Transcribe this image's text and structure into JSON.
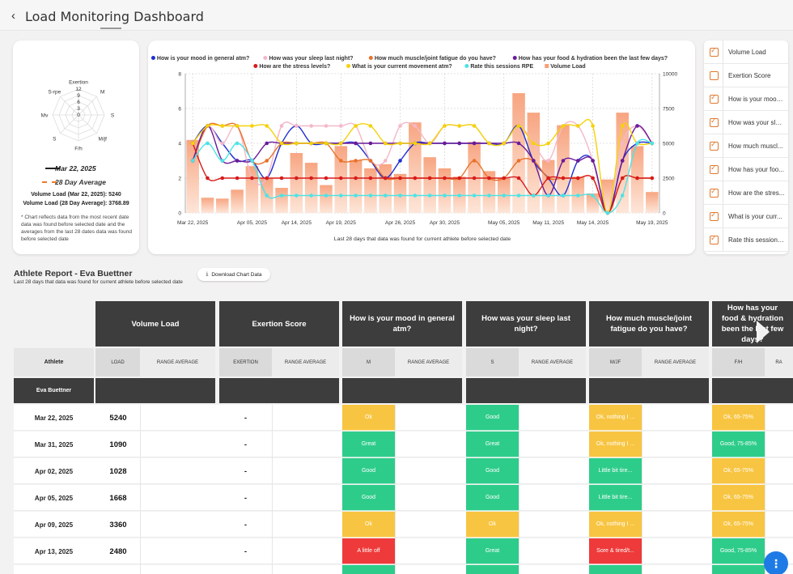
{
  "header": {
    "title": "Load Monitoring Dashboard",
    "back_glyph": "‹"
  },
  "radar": {
    "axes": [
      "Exertion",
      "M",
      "S",
      "M/jf",
      "F/h",
      "S",
      "Mv",
      "S-rpe"
    ],
    "rings": [
      "12",
      "9",
      "6",
      "3",
      "0"
    ],
    "date_legend": "Mar 22, 2025",
    "avg_legend": "28 Day Average",
    "volume_load": "Volume Load (Mar 22, 2025): 5240",
    "volume_load_avg": "Volume Load (28 Day Average): 3768.89",
    "note": "* Chart reflects data from the most recent date data was found before selected date and the averages from the last 28 dates data was found before selected date",
    "colors": {
      "date": "#222222",
      "avg": "#f07a28"
    }
  },
  "chart_data": {
    "type": "line",
    "title": "",
    "legend": [
      {
        "name": "How is your mood in general atm?",
        "color": "#1f2fd0"
      },
      {
        "name": "How was your sleep last night?",
        "color": "#f4b8c8"
      },
      {
        "name": "How much muscle/joint fatigue do you have?",
        "color": "#e8722a"
      },
      {
        "name": "How has your food & hydration been the last few days?",
        "color": "#6a1b9a"
      },
      {
        "name": "How are the stress levels?",
        "color": "#d81b1b"
      },
      {
        "name": "What is your current movement atm?",
        "color": "#f5d20a"
      },
      {
        "name": "Rate this sessions RPE",
        "color": "#4de3e6"
      },
      {
        "name": "Volume Load",
        "color": "#f7a07a"
      }
    ],
    "x_ticks": [
      "Mar 22, 2025",
      "Apr 05, 2025",
      "Apr 14, 2025",
      "Apr 19, 2025",
      "Apr 26, 2025",
      "Apr 30, 2025",
      "May 05, 2025",
      "May 11, 2025",
      "May 14, 2025",
      "May 19, 2025"
    ],
    "xlabel": "Last 28 days that data was found for current athlete before selected date",
    "ylim_left": [
      0,
      8
    ],
    "ylim_right": [
      0,
      10000
    ],
    "y_ticks_left": [
      "0",
      "2",
      "4",
      "6",
      "8"
    ],
    "y_ticks_right": [
      "0",
      "2500",
      "5000",
      "7500",
      "10000"
    ],
    "volume_load": [
      5240,
      1090,
      1028,
      1668,
      3360,
      2480,
      1800,
      4300,
      3600,
      2000,
      4800,
      3800,
      3200,
      3500,
      2800,
      6500,
      4000,
      3200,
      2600,
      5100,
      3000,
      2500,
      8600,
      7200,
      3800,
      6300,
      2600,
      1400,
      2400,
      7200,
      4800,
      1500
    ],
    "series": [
      {
        "name": "How is your mood in general atm?",
        "values": [
          4,
          5,
          4,
          3,
          3,
          2,
          4,
          5,
          4,
          4,
          4,
          4,
          3,
          2,
          3,
          4,
          4,
          4,
          4,
          4,
          4,
          4,
          5,
          3,
          2,
          1,
          3,
          3,
          0,
          3,
          4,
          4
        ]
      },
      {
        "name": "How was your sleep last night?",
        "values": [
          3,
          5,
          4,
          5,
          2,
          2,
          5,
          5,
          5,
          5,
          5,
          5,
          3,
          3,
          5,
          5,
          4,
          5,
          5,
          5,
          4,
          4,
          5,
          4,
          3,
          5,
          5,
          3,
          0,
          4,
          5,
          4
        ]
      },
      {
        "name": "How much muscle/joint fatigue do you have?",
        "values": [
          3,
          5,
          5,
          5,
          3,
          3,
          4,
          4,
          4,
          4,
          3,
          3,
          3,
          2,
          2,
          2,
          2,
          2,
          2,
          3,
          2,
          2,
          3,
          3,
          2,
          2,
          2,
          2,
          0,
          2,
          2,
          2
        ]
      },
      {
        "name": "How has your food & hydration been the last few days?",
        "values": [
          3,
          5,
          3,
          3,
          3,
          4,
          4,
          4,
          4,
          4,
          4,
          4,
          4,
          4,
          4,
          4,
          4,
          4,
          4,
          4,
          4,
          4,
          4,
          3,
          1,
          3,
          3,
          3,
          0,
          3,
          5,
          4
        ]
      },
      {
        "name": "How are the stress levels?",
        "values": [
          4,
          2,
          2,
          2,
          2,
          2,
          2,
          2,
          2,
          2,
          2,
          2,
          2,
          2,
          2,
          2,
          2,
          2,
          2,
          2,
          2,
          2,
          2,
          1,
          2,
          2,
          2,
          2,
          0,
          2,
          2,
          2
        ]
      },
      {
        "name": "What is your current movement atm?",
        "values": [
          4,
          5,
          5,
          5,
          5,
          5,
          4,
          4,
          4,
          4,
          4,
          5,
          5,
          4,
          4,
          4,
          4,
          5,
          5,
          5,
          4,
          4,
          5,
          4,
          4,
          5,
          5,
          5,
          0,
          5,
          4,
          4
        ]
      },
      {
        "name": "Rate this sessions RPE",
        "values": [
          3,
          4,
          3,
          4,
          3,
          1,
          1,
          1,
          1,
          1,
          1,
          1,
          1,
          1,
          1,
          1,
          1,
          1,
          1,
          1,
          1,
          1,
          1,
          1,
          1,
          1,
          1,
          1,
          0,
          1,
          4,
          4
        ]
      }
    ]
  },
  "legend_panel": [
    {
      "label": "Volume Load",
      "checked": true
    },
    {
      "label": "Exertion Score",
      "checked": false
    },
    {
      "label": "How is your mood...",
      "checked": true
    },
    {
      "label": "How was your slee...",
      "checked": true
    },
    {
      "label": "How much muscl...",
      "checked": true
    },
    {
      "label": "How has your foo...",
      "checked": true
    },
    {
      "label": "How are the stres...",
      "checked": true
    },
    {
      "label": "What is your curr...",
      "checked": true
    },
    {
      "label": "Rate this sessions...",
      "checked": true
    }
  ],
  "report": {
    "title": "Athlete Report - Eva Buettner",
    "subtitle": "Last 28 days that data was found for current athlete before selected date",
    "download_label": "Download Chart Data",
    "athlete_header": "Athlete",
    "athlete_name": "Eva Buettner",
    "columns": [
      {
        "title": "Volume Load",
        "sub1": "LOAD",
        "sub2": "RANGE AVERAGE"
      },
      {
        "title": "Exertion Score",
        "sub1": "EXERTION",
        "sub2": "RANGE AVERAGE"
      },
      {
        "title": "How is your mood in general atm?",
        "sub1": "M",
        "sub2": "RANGE AVERAGE"
      },
      {
        "title": "How was your sleep last night?",
        "sub1": "S",
        "sub2": "RANGE AVERAGE"
      },
      {
        "title": "How much muscle/joint fatigue do you have?",
        "sub1": "M/JF",
        "sub2": "RANGE AVERAGE"
      },
      {
        "title": "How has your food & hydration been the last few days?",
        "sub1": "F/H",
        "sub2": "RA"
      }
    ],
    "rows": [
      {
        "date": "Mar 22, 2025",
        "load": "5240",
        "exertion": "-",
        "m": "Ok",
        "s": "Good",
        "mjf": "Ok, nothing I ...",
        "fh": "Ok, 65-75%"
      },
      {
        "date": "Mar 31, 2025",
        "load": "1090",
        "exertion": "-",
        "m": "Great",
        "s": "Great",
        "mjf": "Ok, nothing I ...",
        "fh": "Good, 75-85%"
      },
      {
        "date": "Apr 02, 2025",
        "load": "1028",
        "exertion": "-",
        "m": "Good",
        "s": "Good",
        "mjf": "Little bit tire...",
        "fh": "Ok, 65-75%"
      },
      {
        "date": "Apr 05, 2025",
        "load": "1668",
        "exertion": "-",
        "m": "Good",
        "s": "Good",
        "mjf": "Little bit tire...",
        "fh": "Ok, 65-75%"
      },
      {
        "date": "Apr 09, 2025",
        "load": "3360",
        "exertion": "-",
        "m": "Ok",
        "s": "Ok",
        "mjf": "Ok, nothing I ...",
        "fh": "Ok, 65-75%"
      },
      {
        "date": "Apr 13, 2025",
        "load": "2480",
        "exertion": "-",
        "m": "A little off",
        "s": "Great",
        "mjf": "Sore & tired/t...",
        "fh": "Good, 75-85%"
      },
      {
        "date": "",
        "load": "",
        "exertion": "",
        "m": "",
        "s": "",
        "mjf": "",
        "fh": ""
      }
    ],
    "status_colors": {
      "ok": "#f8c542",
      "good": "#2ecc8a",
      "bad": "#ee3a3a"
    }
  },
  "fab_glyph": "⋮"
}
